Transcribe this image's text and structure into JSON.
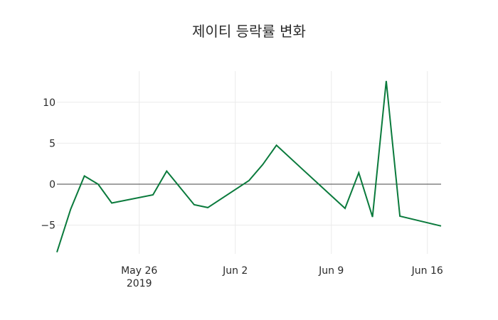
{
  "chart_data": {
    "type": "line",
    "title": "제이티 등락률 변화",
    "xlabel": "",
    "ylabel": "",
    "x": [
      "2019-05-20",
      "2019-05-21",
      "2019-05-22",
      "2019-05-23",
      "2019-05-24",
      "2019-05-27",
      "2019-05-28",
      "2019-05-29",
      "2019-05-30",
      "2019-05-31",
      "2019-06-03",
      "2019-06-04",
      "2019-06-05",
      "2019-06-07",
      "2019-06-10",
      "2019-06-11",
      "2019-06-12",
      "2019-06-13",
      "2019-06-14",
      "2019-06-17"
    ],
    "series": [
      {
        "name": "등락률",
        "color": "#0a7a3c",
        "values": [
          -8.3,
          -3.05,
          1.0,
          0.0,
          -2.3,
          -1.3,
          1.6,
          -0.45,
          -2.5,
          -2.85,
          0.45,
          2.4,
          4.75,
          1.67,
          -2.95,
          1.4,
          -4.0,
          12.6,
          -3.9,
          -5.1
        ]
      }
    ],
    "ylim": [
      -8.5,
      13.8
    ],
    "xlim": [
      "2019-05-20",
      "2019-06-17"
    ],
    "yticks": [
      -5,
      0,
      5,
      10
    ],
    "ytick_labels": [
      "−5",
      "0",
      "5",
      "10"
    ],
    "xticks": [
      "2019-05-26",
      "2019-06-02",
      "2019-06-09",
      "2019-06-16"
    ],
    "xtick_labels": [
      "May 26",
      "Jun 2",
      "Jun 9",
      "Jun 16"
    ],
    "xtick_sublabel": "2019",
    "grid": true,
    "zero_line": true,
    "legend": false
  }
}
